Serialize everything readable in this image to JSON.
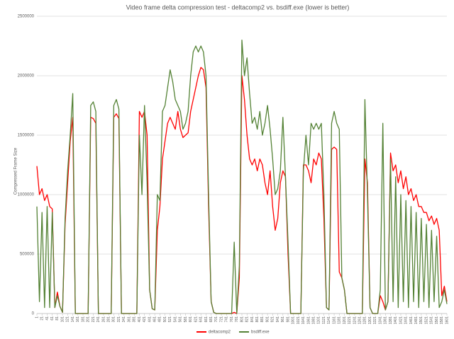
{
  "chart_data": {
    "type": "line",
    "title": "Video frame delta compression test - deltacomp2 vs. bsdiff.exe (lower is better)",
    "y_label": "Compressed Frame Size",
    "x": [
      1,
      11,
      21,
      31,
      41,
      51,
      61,
      71,
      81,
      91,
      101,
      111,
      121,
      131,
      141,
      151,
      161,
      171,
      181,
      191,
      201,
      211,
      221,
      231,
      241,
      251,
      261,
      271,
      281,
      291,
      301,
      311,
      321,
      331,
      341,
      351,
      361,
      371,
      381,
      391,
      401,
      411,
      421,
      431,
      441,
      451,
      461,
      471,
      481,
      491,
      501,
      511,
      521,
      531,
      541,
      551,
      561,
      571,
      581,
      591,
      601,
      611,
      621,
      631,
      641,
      651,
      661,
      671,
      681,
      691,
      701,
      711,
      721,
      731,
      741,
      751,
      761,
      771,
      781,
      791,
      801,
      811,
      821,
      831,
      841,
      851,
      861,
      871,
      881,
      891,
      901,
      911,
      921,
      931,
      941,
      951,
      961,
      971,
      981,
      991,
      1001,
      1011,
      1021,
      1031,
      1041,
      1051,
      1061,
      1071,
      1081,
      1091,
      1101,
      1111,
      1121,
      1131,
      1141,
      1151,
      1161,
      1171,
      1181,
      1191,
      1201,
      1211,
      1221,
      1231,
      1241,
      1251,
      1261,
      1271,
      1281,
      1291,
      1301,
      1311,
      1321,
      1331,
      1341,
      1351,
      1361,
      1371,
      1381,
      1391,
      1401,
      1411,
      1421,
      1431,
      1441,
      1451,
      1461,
      1471,
      1481,
      1491,
      1501,
      1511,
      1521,
      1531,
      1541,
      1551,
      1561,
      1571,
      1581,
      1591,
      1601
    ],
    "series": [
      {
        "name": "deltacomp2",
        "color": "#ff0000",
        "values": [
          1240000,
          1000000,
          1050000,
          950000,
          1000000,
          900000,
          880000,
          50000,
          180000,
          60000,
          10000,
          750000,
          1100000,
          1450000,
          1650000,
          0,
          0,
          0,
          0,
          0,
          0,
          1650000,
          1640000,
          1600000,
          0,
          0,
          0,
          0,
          0,
          0,
          1650000,
          1680000,
          1640000,
          0,
          0,
          0,
          0,
          0,
          0,
          0,
          1700000,
          1650000,
          1700000,
          1500000,
          200000,
          40000,
          30000,
          700000,
          900000,
          1300000,
          1450000,
          1600000,
          1650000,
          1600000,
          1550000,
          1700000,
          1550000,
          1480000,
          1500000,
          1520000,
          1700000,
          1800000,
          1900000,
          2000000,
          2070000,
          2050000,
          1900000,
          900000,
          100000,
          10000,
          0,
          0,
          0,
          0,
          0,
          0,
          0,
          10000,
          0,
          300000,
          2000000,
          1800000,
          1500000,
          1300000,
          1250000,
          1300000,
          1200000,
          1300000,
          1250000,
          1100000,
          1000000,
          1200000,
          900000,
          700000,
          800000,
          1100000,
          1200000,
          1150000,
          500000,
          0,
          0,
          0,
          0,
          0,
          1250000,
          1250000,
          1200000,
          1100000,
          1300000,
          1250000,
          1350000,
          1300000,
          800000,
          50000,
          30000,
          1380000,
          1400000,
          1380000,
          350000,
          300000,
          200000,
          0,
          0,
          0,
          0,
          0,
          0,
          0,
          1300000,
          1100000,
          50000,
          0,
          0,
          0,
          150000,
          100000,
          30000,
          100000,
          1350000,
          1200000,
          1250000,
          1100000,
          1200000,
          1050000,
          1150000,
          1000000,
          1050000,
          950000,
          1000000,
          900000,
          900000,
          850000,
          850000,
          780000,
          820000,
          750000,
          800000,
          700000,
          150000,
          230000,
          100000
        ]
      },
      {
        "name": "bsdiff.exe",
        "color": "#548235",
        "values": [
          900000,
          100000,
          850000,
          50000,
          900000,
          50000,
          850000,
          50000,
          150000,
          60000,
          10000,
          800000,
          1200000,
          1500000,
          1850000,
          0,
          0,
          0,
          0,
          0,
          0,
          1750000,
          1780000,
          1700000,
          0,
          0,
          0,
          0,
          0,
          0,
          1750000,
          1800000,
          1720000,
          0,
          0,
          0,
          0,
          0,
          0,
          0,
          1500000,
          1000000,
          1750000,
          1100000,
          200000,
          40000,
          30000,
          1000000,
          950000,
          1700000,
          1750000,
          1900000,
          2050000,
          1950000,
          1800000,
          1750000,
          1700000,
          1550000,
          1600000,
          1700000,
          2000000,
          2200000,
          2250000,
          2200000,
          2250000,
          2200000,
          2000000,
          1000000,
          100000,
          10000,
          0,
          0,
          0,
          0,
          0,
          0,
          0,
          600000,
          0,
          400000,
          2300000,
          2000000,
          2150000,
          1850000,
          1600000,
          1650000,
          1550000,
          1700000,
          1500000,
          1600000,
          1750000,
          1550000,
          1300000,
          1000000,
          1050000,
          1200000,
          1650000,
          1150000,
          600000,
          0,
          0,
          0,
          0,
          0,
          1200000,
          1500000,
          1250000,
          1600000,
          1550000,
          1600000,
          1550000,
          1600000,
          1000000,
          50000,
          30000,
          1600000,
          1700000,
          1600000,
          1550000,
          300000,
          200000,
          0,
          0,
          0,
          0,
          0,
          0,
          0,
          1800000,
          1000000,
          50000,
          0,
          0,
          0,
          200000,
          1600000,
          30000,
          100000,
          1300000,
          100000,
          1150000,
          50000,
          1000000,
          100000,
          950000,
          50000,
          900000,
          100000,
          850000,
          50000,
          800000,
          100000,
          750000,
          50000,
          700000,
          100000,
          650000,
          50000,
          100000,
          200000,
          80000
        ]
      }
    ],
    "xlim": [
      1,
      1601
    ],
    "xticks": [
      1,
      21,
      41,
      61,
      81,
      101,
      121,
      141,
      161,
      181,
      201,
      221,
      241,
      261,
      281,
      301,
      321,
      341,
      361,
      381,
      401,
      421,
      441,
      461,
      481,
      501,
      521,
      541,
      561,
      581,
      601,
      621,
      641,
      661,
      681,
      701,
      721,
      741,
      761,
      781,
      801,
      821,
      841,
      861,
      881,
      901,
      921,
      941,
      961,
      981,
      1001,
      1021,
      1041,
      1061,
      1081,
      1101,
      1121,
      1141,
      1161,
      1181,
      1201,
      1221,
      1241,
      1261,
      1281,
      1301,
      1321,
      1341,
      1361,
      1381,
      1401,
      1421,
      1441,
      1461,
      1481,
      1501,
      1521,
      1541,
      1561,
      1581,
      1601
    ],
    "ylim": [
      0,
      2500000
    ],
    "yticks": [
      0,
      500000,
      1000000,
      1500000,
      2000000,
      2500000
    ],
    "grid": true,
    "legend": "bottom"
  }
}
